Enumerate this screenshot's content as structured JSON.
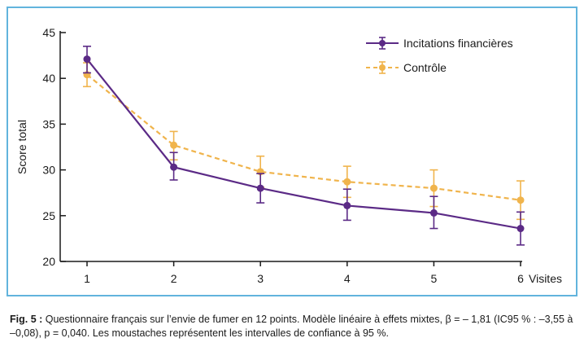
{
  "chart_data": {
    "type": "line",
    "x": [
      1,
      2,
      3,
      4,
      5,
      6
    ],
    "x_tick_labels": [
      "1",
      "2",
      "3",
      "4",
      "5",
      "6"
    ],
    "xlabel": "Visites",
    "ylabel": "Score total",
    "ylim": [
      20,
      45
    ],
    "y_ticks": [
      20,
      25,
      30,
      35,
      40,
      45
    ],
    "grid": false,
    "legend_position": "top-right",
    "series": [
      {
        "name": "Incitations financières",
        "color": "#5b2a86",
        "dash": false,
        "values": [
          42.1,
          30.3,
          28.0,
          26.1,
          25.3,
          23.6
        ],
        "ci_low": [
          40.6,
          28.9,
          26.4,
          24.5,
          23.6,
          21.8
        ],
        "ci_high": [
          43.5,
          31.9,
          29.6,
          27.9,
          27.1,
          25.4
        ]
      },
      {
        "name": "Contrôle",
        "color": "#f0b44c",
        "dash": true,
        "values": [
          40.4,
          32.7,
          29.8,
          28.7,
          28.0,
          26.7
        ],
        "ci_low": [
          39.1,
          31.1,
          28.1,
          27.0,
          26.0,
          24.6
        ],
        "ci_high": [
          41.7,
          34.2,
          31.5,
          30.4,
          30.0,
          28.8
        ]
      }
    ]
  },
  "caption": {
    "label": "Fig. 5 :",
    "text": " Questionnaire français sur l’envie de fumer en 12 points. Modèle linéaire à effets mixtes, β = – 1,81 (IC95 % : –3,55 à –0,08), p = 0,040. Les moustaches représentent les intervalles de confiance à 95 %."
  },
  "colors": {
    "frame": "#62b4dd",
    "axis": "#1a1a1a"
  }
}
